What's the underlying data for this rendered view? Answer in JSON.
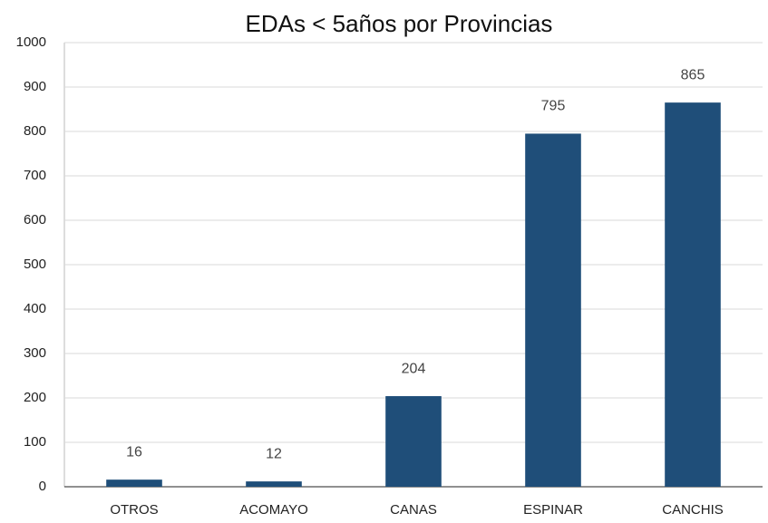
{
  "chart_data": {
    "type": "bar",
    "title": "EDAs < 5años por Provincias",
    "categories": [
      "OTROS",
      "ACOMAYO",
      "CANAS",
      "ESPINAR",
      "CANCHIS"
    ],
    "values": [
      16,
      12,
      204,
      795,
      865
    ],
    "color": "#1f4e79",
    "ylim": [
      0,
      1000
    ],
    "yticks": [
      0,
      100,
      200,
      300,
      400,
      500,
      600,
      700,
      800,
      900,
      1000
    ],
    "grid": true
  }
}
